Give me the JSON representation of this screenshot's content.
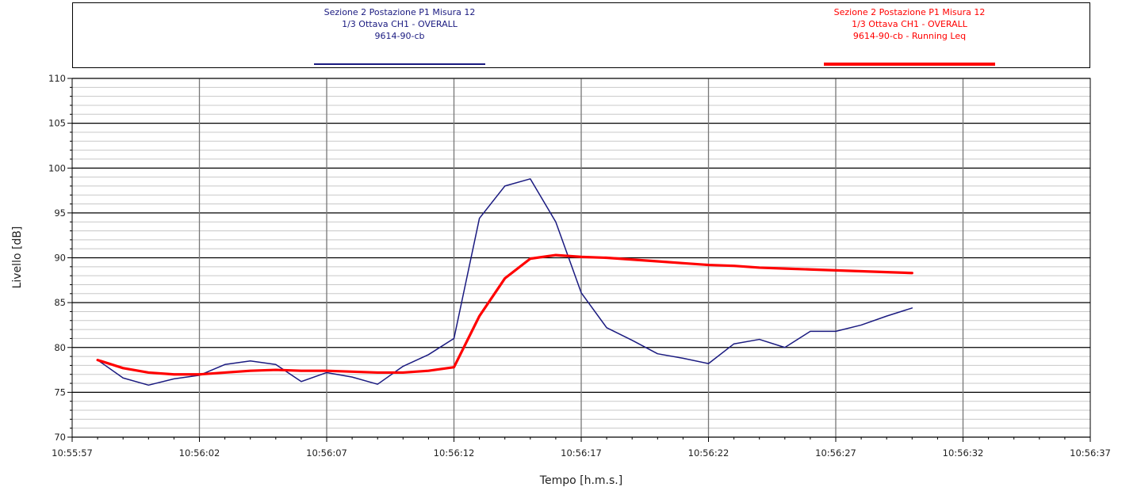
{
  "chart_data": {
    "type": "line",
    "xlabel": "Tempo [h.m.s.]",
    "ylabel": "Livello [dB]",
    "ylim": [
      70,
      110
    ],
    "x_tick_labels": [
      "10:55:57",
      "10:56:02",
      "10:56:07",
      "10:56:12",
      "10:56:17",
      "10:56:22",
      "10:56:27",
      "10:56:32",
      "10:56:37"
    ],
    "x_tick_seconds": [
      0,
      5,
      10,
      15,
      20,
      25,
      30,
      35,
      40
    ],
    "y_ticks": [
      70,
      75,
      80,
      85,
      90,
      95,
      100,
      105,
      110
    ],
    "grid": true,
    "legend_position": "top",
    "series": [
      {
        "name": "Sezione 2 Postazione P1 Misura 12 / 1/3 Ottava CH1 - OVERALL / 9614-90-cb",
        "legend_lines": [
          "Sezione 2 Postazione P1 Misura 12",
          "1/3 Ottava CH1 - OVERALL",
          "9614-90-cb"
        ],
        "color": "#1a1a80",
        "x": [
          1,
          2,
          3,
          4,
          5,
          6,
          7,
          8,
          9,
          10,
          11,
          12,
          13,
          14,
          15,
          16,
          17,
          18,
          19,
          20,
          21,
          22,
          23,
          24,
          25,
          26,
          27,
          28,
          29,
          30,
          31,
          32,
          33
        ],
        "values": [
          78.6,
          76.6,
          75.8,
          76.5,
          76.9,
          78.1,
          78.5,
          78.1,
          76.2,
          77.2,
          76.7,
          75.9,
          77.9,
          79.2,
          81.0,
          94.4,
          98.0,
          98.8,
          94.0,
          86.1,
          82.2,
          80.8,
          79.3,
          78.8,
          78.2,
          80.4,
          80.9,
          80.0,
          81.8,
          81.8,
          82.5,
          83.5,
          84.4
        ]
      },
      {
        "name": "Sezione 2 Postazione P1 Misura 12 / 1/3 Ottava CH1 - OVERALL / 9614-90-cb - Running Leq",
        "legend_lines": [
          "Sezione 2 Postazione P1 Misura 12",
          "1/3 Ottava CH1 - OVERALL",
          "9614-90-cb - Running Leq"
        ],
        "color": "#ff0000",
        "x": [
          1,
          2,
          3,
          4,
          5,
          6,
          7,
          8,
          9,
          10,
          11,
          12,
          13,
          14,
          15,
          16,
          17,
          18,
          19,
          20,
          21,
          22,
          23,
          24,
          25,
          26,
          27,
          28,
          29,
          30,
          31,
          32,
          33
        ],
        "values": [
          78.6,
          77.7,
          77.2,
          77.0,
          77.0,
          77.2,
          77.4,
          77.5,
          77.4,
          77.4,
          77.3,
          77.2,
          77.2,
          77.4,
          77.8,
          83.5,
          87.7,
          89.9,
          90.3,
          90.1,
          90.0,
          89.8,
          89.6,
          89.4,
          89.2,
          89.1,
          88.9,
          88.8,
          88.7,
          88.6,
          88.5,
          88.4,
          88.3
        ]
      }
    ]
  }
}
